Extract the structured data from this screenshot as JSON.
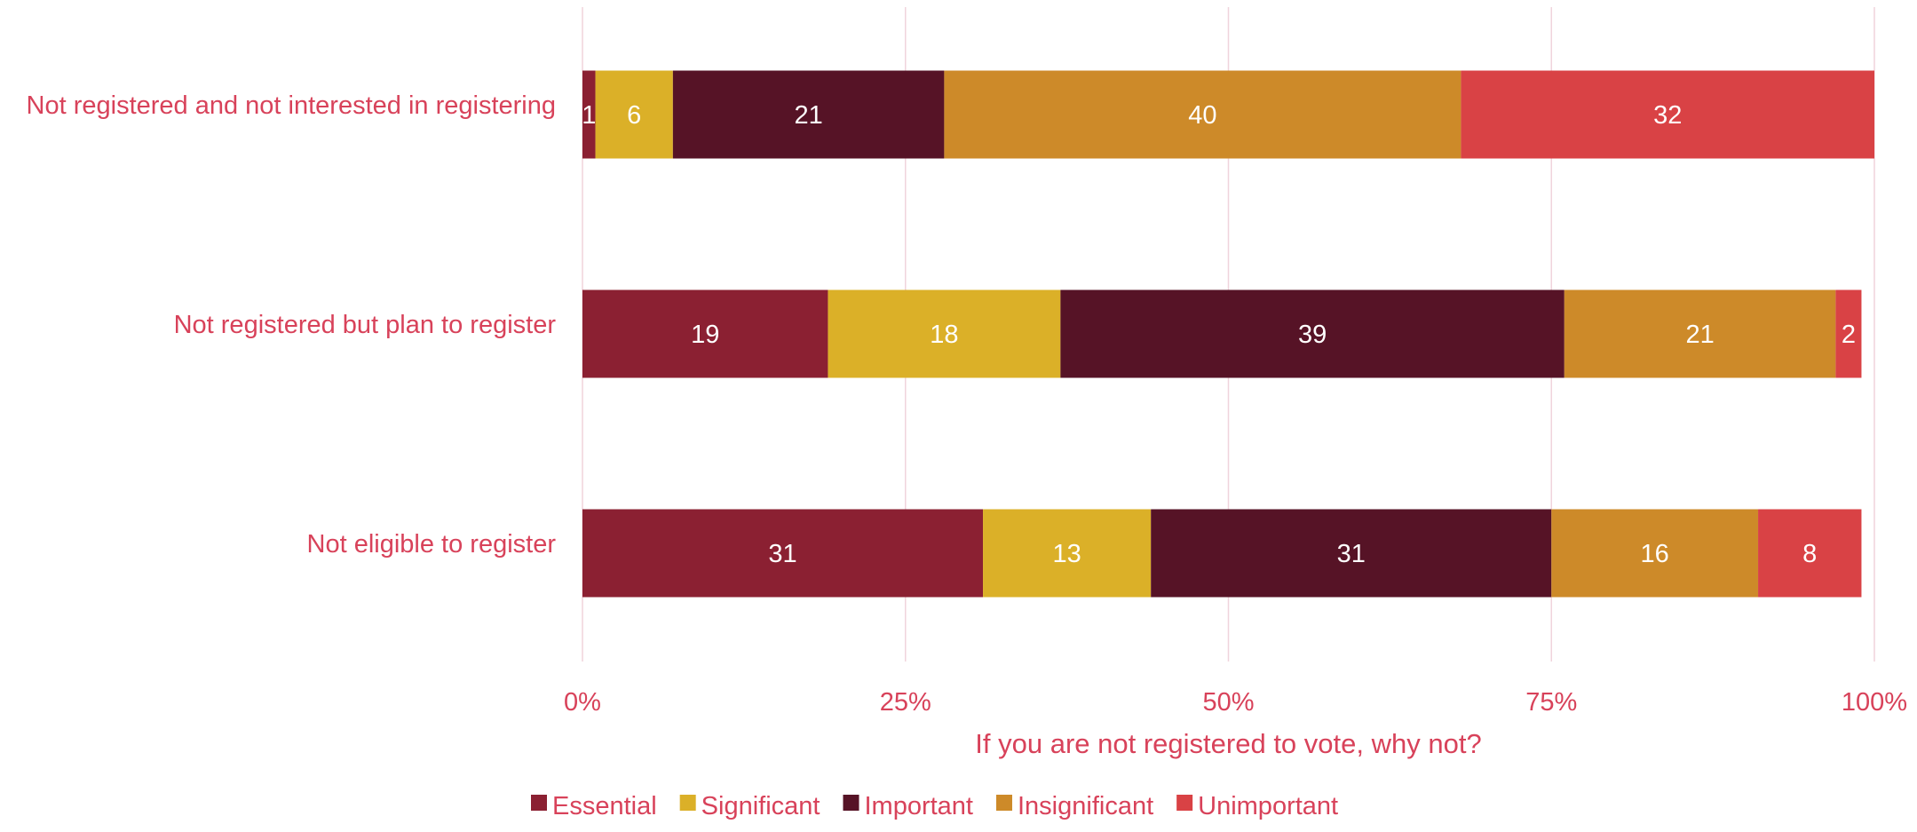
{
  "chart_data": {
    "type": "bar",
    "orientation": "horizontal",
    "stacked": true,
    "categories": [
      "Not registered and not interested in registering",
      "Not registered but plan to register",
      "Not eligible to register"
    ],
    "series": [
      {
        "name": "Essential",
        "color": "#8b2032",
        "values": [
          1,
          19,
          31
        ]
      },
      {
        "name": "Significant",
        "color": "#dbb028",
        "values": [
          6,
          18,
          13
        ]
      },
      {
        "name": "Important",
        "color": "#561326",
        "values": [
          21,
          39,
          31
        ]
      },
      {
        "name": "Insignificant",
        "color": "#cd8a29",
        "values": [
          40,
          21,
          16
        ]
      },
      {
        "name": "Unimportant",
        "color": "#d94245",
        "values": [
          32,
          2,
          8
        ]
      }
    ],
    "xlim": [
      0,
      100
    ],
    "x_ticks": [
      "0%",
      "25%",
      "50%",
      "75%",
      "100%"
    ],
    "x_tick_values": [
      0,
      25,
      50,
      75,
      100
    ],
    "xlabel": "If you are not registered to vote, why not?",
    "ylabel": "",
    "title": "",
    "grid": true,
    "legend_position": "bottom",
    "colors": {
      "text": "#d8425a",
      "grid": "#f0d4dc",
      "label": "#ffffff"
    }
  }
}
